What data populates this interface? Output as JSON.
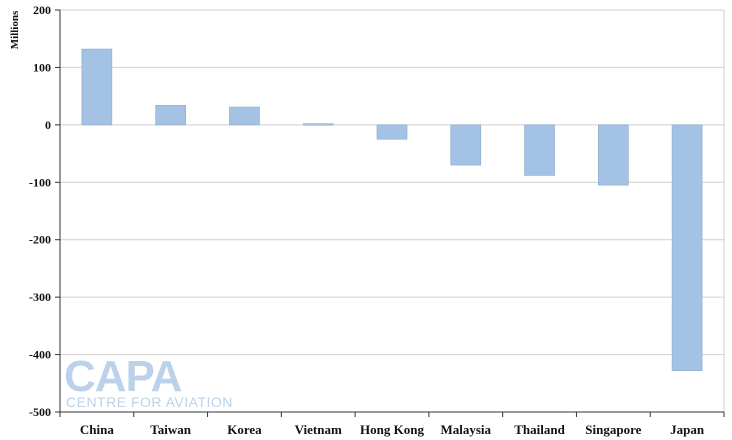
{
  "chart_data": {
    "type": "bar",
    "ylabel": "Millions",
    "ylim": [
      -500,
      200
    ],
    "yticks": [
      200,
      100,
      0,
      -100,
      -200,
      -300,
      -400,
      -500
    ],
    "grid": true,
    "categories": [
      "China",
      "Taiwan",
      "Korea",
      "Vietnam",
      "Hong Kong",
      "Malaysia",
      "Thailand",
      "Singapore",
      "Japan"
    ],
    "values": [
      132,
      34,
      31,
      2,
      -25,
      -70,
      -88,
      -105,
      -428
    ],
    "bar_color": "#a4c3e4",
    "bar_edge_color": "#8aa9c9"
  },
  "watermark": {
    "main": "CAPA",
    "sub": "CENTRE FOR AVIATION"
  }
}
